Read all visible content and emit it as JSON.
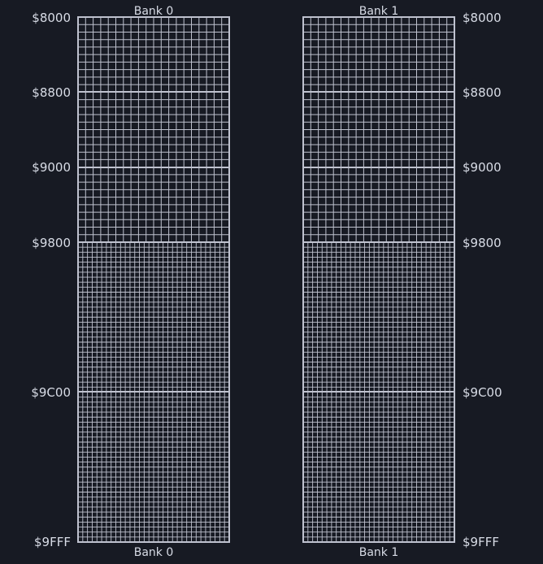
{
  "colors": {
    "background": "#171a23",
    "grid_line": "#bfc2cf",
    "text": "#d8dce6"
  },
  "banks": [
    {
      "top_label": "Bank 0",
      "bottom_label": "Bank 0"
    },
    {
      "top_label": "Bank 1",
      "bottom_label": "Bank 1"
    }
  ],
  "address_markers": [
    {
      "label": "$8000",
      "section_start": true
    },
    {
      "label": "$8800",
      "section_start": true
    },
    {
      "label": "$9000",
      "section_start": true
    },
    {
      "label": "$9800",
      "section_start": true
    },
    {
      "label": "$9C00",
      "section_start": true
    },
    {
      "label": "$9FFF",
      "section_start": false
    }
  ]
}
